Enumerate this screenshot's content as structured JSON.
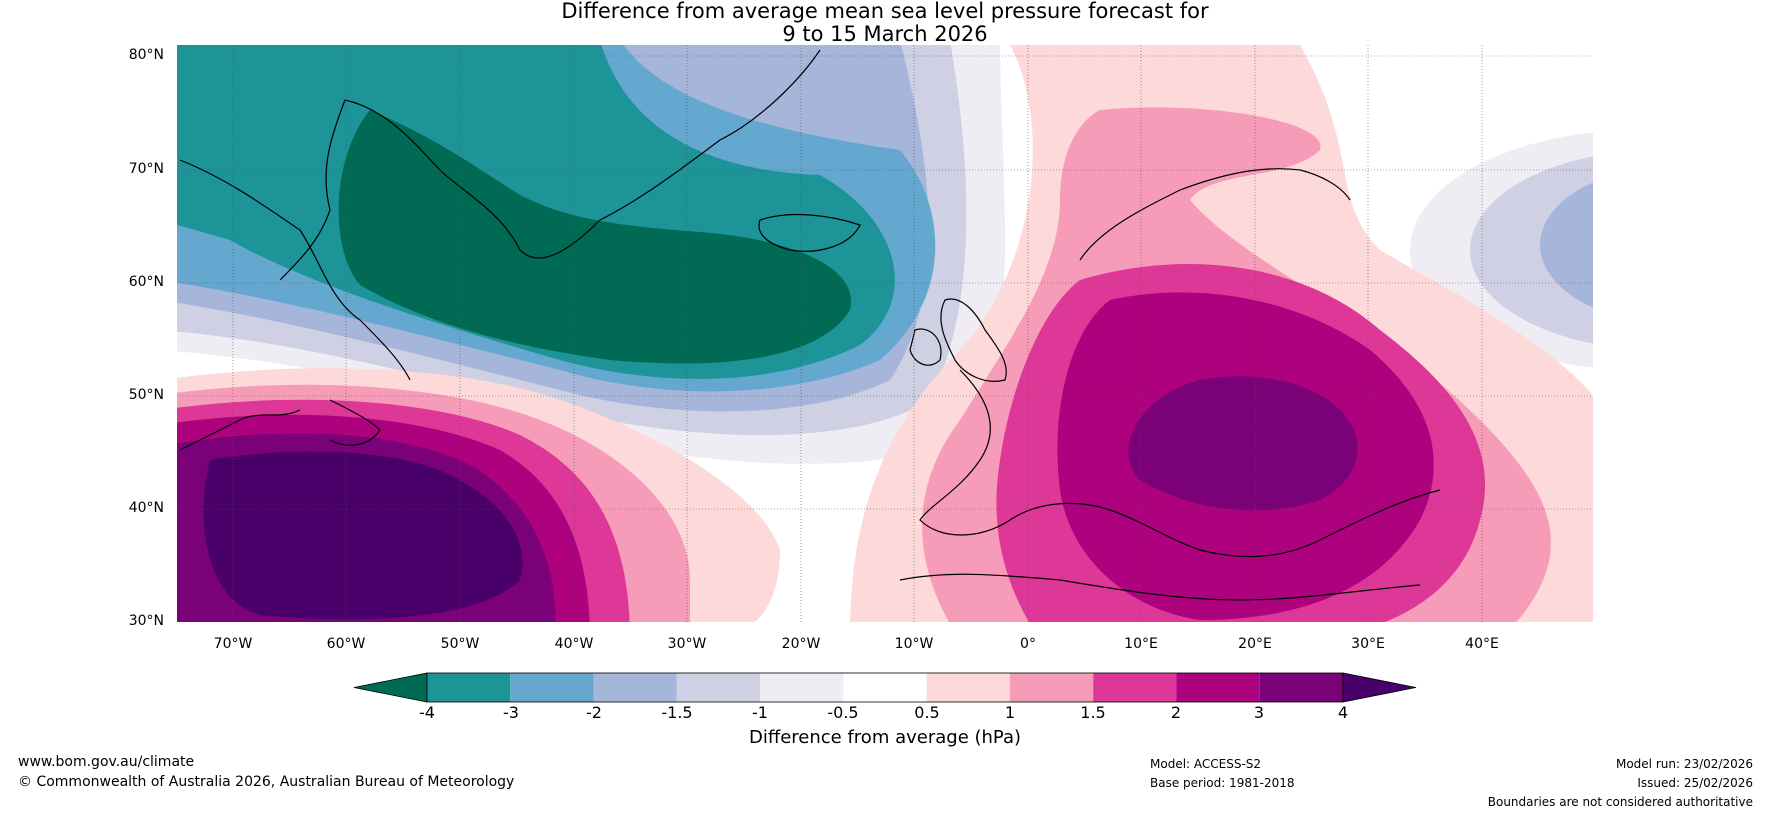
{
  "title": {
    "line1": "Difference from average mean sea level pressure forecast for",
    "line2": "9 to 15 March 2026"
  },
  "map": {
    "lat_labels": [
      "80°N",
      "70°N",
      "60°N",
      "50°N",
      "40°N",
      "30°N"
    ],
    "lon_labels": [
      "70°W",
      "60°W",
      "50°W",
      "40°W",
      "30°W",
      "20°W",
      "10°W",
      "0°",
      "10°E",
      "20°E",
      "30°E",
      "40°E"
    ],
    "lat_range": [
      30,
      80
    ],
    "lon_range": [
      -75,
      50
    ],
    "regions": [
      "Greenland",
      "Iceland",
      "British Isles",
      "Scandinavia",
      "Europe",
      "North Africa",
      "Newfoundland"
    ],
    "anomalies": {
      "negative_centre": "south of Greenland / Iceland",
      "positive_centre_west": "western North Atlantic off Newfoundland",
      "positive_centre_east": "central Europe"
    }
  },
  "colorbar": {
    "ticks": [
      "-4",
      "-3",
      "-2",
      "-1.5",
      "-1",
      "-0.5",
      "0.5",
      "1",
      "1.5",
      "2",
      "3",
      "4"
    ],
    "colors": [
      "#006a55",
      "#1d9498",
      "#65a8cf",
      "#a5b6da",
      "#d0d0e5",
      "#efecf3",
      "#ffffff",
      "#fdd9da",
      "#f79cb8",
      "#dd3897",
      "#ad017e",
      "#7a0177",
      "#49006a"
    ],
    "label": "Difference from average (hPa)"
  },
  "footer": {
    "website": "www.bom.gov.au/climate",
    "copyright": "© Commonwealth of Australia 2026, Australian Bureau of Meteorology",
    "model": "Model: ACCESS-S2",
    "base_period": "Base period: 1981-2018",
    "model_run": "Model run: 23/02/2026",
    "issued": "Issued: 25/02/2026",
    "disclaimer": "Boundaries are not considered authoritative"
  }
}
